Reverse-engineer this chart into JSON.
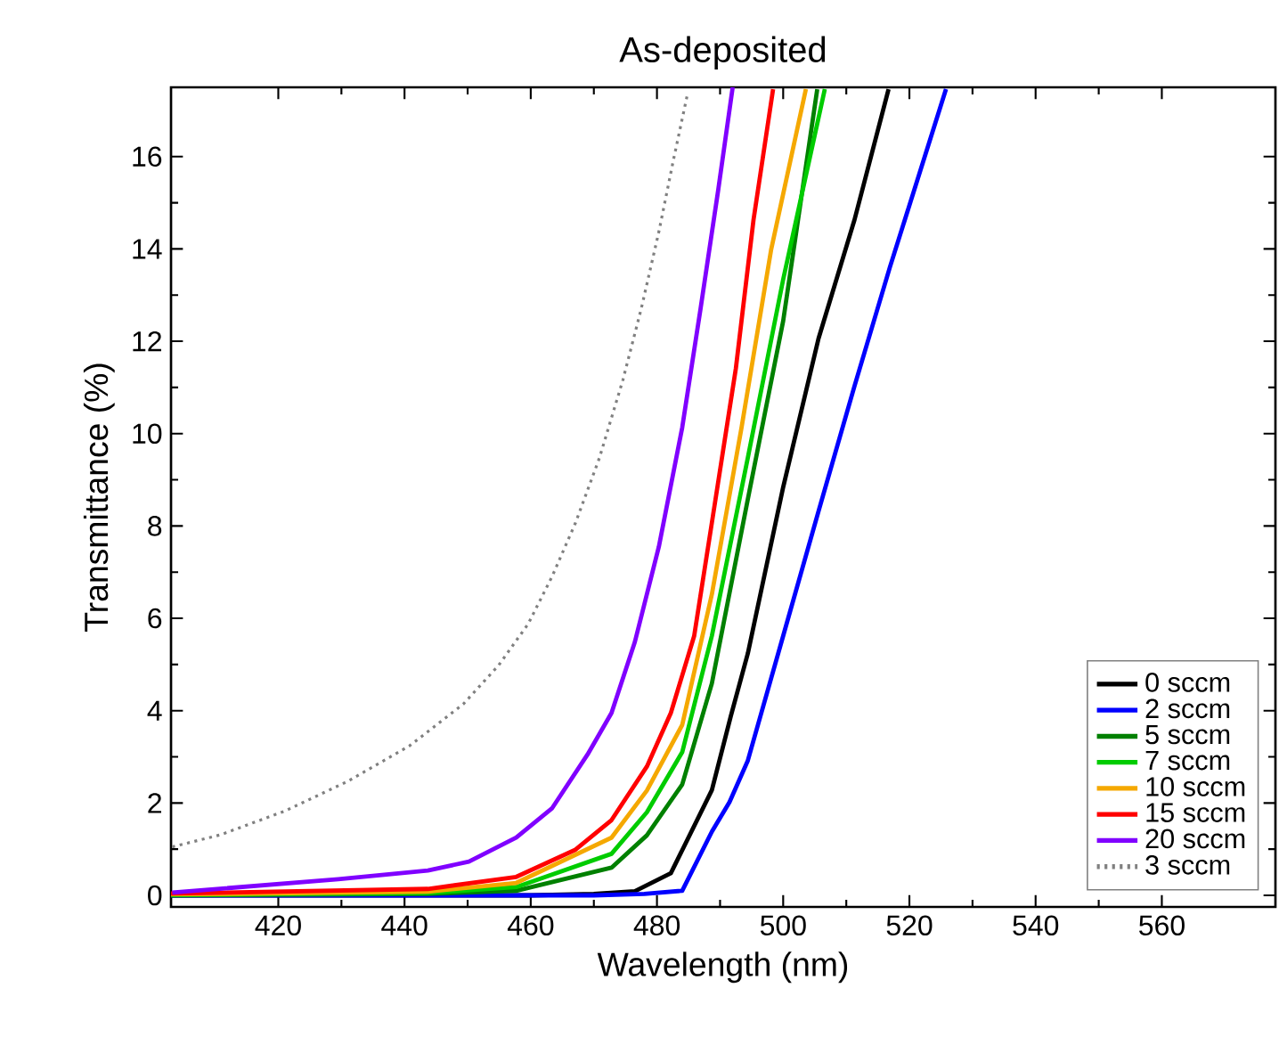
{
  "chart_data": {
    "type": "line",
    "title": "As-deposited",
    "xlabel": "Wavelength (nm)",
    "ylabel": "Transmittance (%)",
    "xlim": [
      403,
      578
    ],
    "ylim": [
      -0.25,
      17.5
    ],
    "xticks": [
      420,
      440,
      460,
      480,
      500,
      520,
      540,
      560
    ],
    "yticks": [
      0,
      2,
      4,
      6,
      8,
      10,
      12,
      14,
      16
    ],
    "grid": false,
    "legend": "bottom right",
    "marker": "none",
    "series": [
      {
        "name": "0 sccm",
        "color": "#000000",
        "line_style": "solid",
        "x": [
          403,
          440,
          460,
          470,
          476.5,
          482.2,
          488.7,
          491.7,
          494.4,
          500,
          505.6,
          511.3,
          516.7
        ],
        "values": [
          0.0,
          0.0,
          0.0,
          0.03,
          0.09,
          0.48,
          2.28,
          3.88,
          5.24,
          8.84,
          12.06,
          14.63,
          17.46
        ]
      },
      {
        "name": "2 sccm",
        "color": "#0000ff",
        "line_style": "solid",
        "x": [
          403,
          440,
          460,
          470,
          478,
          484,
          488.7,
          491.5,
          494.4,
          500,
          505.6,
          511.3,
          516.9,
          525.8
        ],
        "values": [
          0.0,
          0.0,
          0.0,
          0.0,
          0.03,
          0.1,
          1.38,
          2.02,
          2.92,
          5.62,
          8.32,
          11.03,
          13.6,
          17.46
        ]
      },
      {
        "name": "5 sccm",
        "color": "#008000",
        "line_style": "solid",
        "x": [
          403,
          443.7,
          457.7,
          472.8,
          478.4,
          484,
          488.7,
          494.4,
          500,
          505.4
        ],
        "values": [
          0.0,
          0.03,
          0.1,
          0.6,
          1.3,
          2.4,
          4.59,
          8.58,
          12.44,
          17.46
        ]
      },
      {
        "name": "7 sccm",
        "color": "#00cc00",
        "line_style": "solid",
        "x": [
          403,
          443.7,
          457.7,
          472.8,
          478.4,
          484,
          488.7,
          494.4,
          500,
          506.6
        ],
        "values": [
          0.01,
          0.05,
          0.18,
          0.9,
          1.8,
          3.1,
          5.62,
          9.48,
          13.34,
          17.46
        ]
      },
      {
        "name": "10 sccm",
        "color": "#f5a800",
        "line_style": "solid",
        "x": [
          403,
          443.7,
          457.7,
          472.8,
          478.4,
          484,
          488.7,
          493.4,
          498.1,
          503.6
        ],
        "values": [
          0.02,
          0.08,
          0.27,
          1.25,
          2.27,
          3.69,
          6.52,
          10.13,
          13.99,
          17.46
        ]
      },
      {
        "name": "15 sccm",
        "color": "#ff0000",
        "line_style": "solid",
        "x": [
          403,
          443.7,
          457.7,
          467.1,
          472.8,
          478.4,
          482.2,
          485.9,
          488.7,
          492.5,
          495.3,
          498.4
        ],
        "values": [
          0.04,
          0.14,
          0.4,
          0.99,
          1.63,
          2.79,
          3.95,
          5.62,
          8.07,
          11.41,
          14.63,
          17.46
        ]
      },
      {
        "name": "20 sccm",
        "color": "#8000ff",
        "line_style": "solid",
        "x": [
          403.2,
          429.5,
          443.7,
          450.2,
          457.7,
          463.4,
          469,
          472.8,
          476.5,
          480.3,
          484,
          486.9,
          489.7,
          492
        ],
        "values": [
          0.06,
          0.35,
          0.54,
          0.73,
          1.25,
          1.89,
          3.05,
          3.95,
          5.49,
          7.55,
          10.13,
          12.7,
          15.27,
          17.5
        ]
      },
      {
        "name": "3 sccm",
        "color": "#808080",
        "line_style": "dotted",
        "x": [
          403.2,
          410.8,
          421.1,
          431,
          440.8,
          449.3,
          454.9,
          459.6,
          463.4,
          467.1,
          470.9,
          474.6,
          477.5,
          480.3,
          482.6,
          484.8
        ],
        "values": [
          1.05,
          1.31,
          1.83,
          2.47,
          3.24,
          4.14,
          4.98,
          5.88,
          6.91,
          8.07,
          9.48,
          11.16,
          12.7,
          14.37,
          15.92,
          17.33
        ]
      }
    ]
  }
}
